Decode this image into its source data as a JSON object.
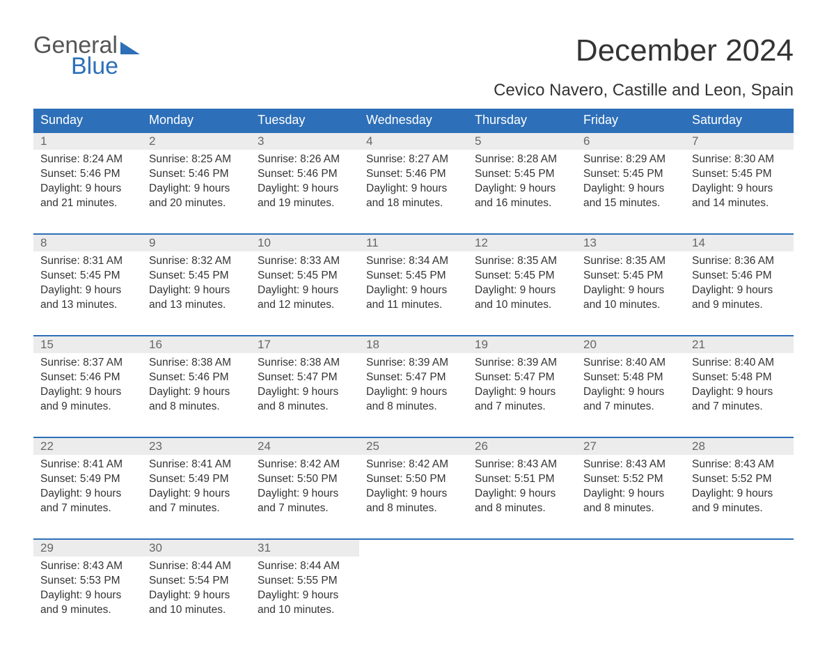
{
  "logo": {
    "line1": "General",
    "line2": "Blue"
  },
  "title": "December 2024",
  "location": "Cevico Navero, Castille and Leon, Spain",
  "day_headers": [
    "Sunday",
    "Monday",
    "Tuesday",
    "Wednesday",
    "Thursday",
    "Friday",
    "Saturday"
  ],
  "colors": {
    "header_bg": "#2d6fb8",
    "header_text": "#ffffff",
    "daynum_bg": "#ececec",
    "daynum_text": "#666666",
    "row_border": "#2d6fb8",
    "body_text": "#333333",
    "logo_grey": "#555555",
    "logo_blue": "#2d6fb8",
    "background": "#ffffff"
  },
  "typography": {
    "title_fontsize": 44,
    "location_fontsize": 24,
    "header_fontsize": 18,
    "daynum_fontsize": 17,
    "cell_fontsize": 15.5,
    "logo_fontsize": 34
  },
  "weeks": [
    [
      {
        "n": "1",
        "sunrise": "Sunrise: 8:24 AM",
        "sunset": "Sunset: 5:46 PM",
        "d1": "Daylight: 9 hours",
        "d2": "and 21 minutes."
      },
      {
        "n": "2",
        "sunrise": "Sunrise: 8:25 AM",
        "sunset": "Sunset: 5:46 PM",
        "d1": "Daylight: 9 hours",
        "d2": "and 20 minutes."
      },
      {
        "n": "3",
        "sunrise": "Sunrise: 8:26 AM",
        "sunset": "Sunset: 5:46 PM",
        "d1": "Daylight: 9 hours",
        "d2": "and 19 minutes."
      },
      {
        "n": "4",
        "sunrise": "Sunrise: 8:27 AM",
        "sunset": "Sunset: 5:46 PM",
        "d1": "Daylight: 9 hours",
        "d2": "and 18 minutes."
      },
      {
        "n": "5",
        "sunrise": "Sunrise: 8:28 AM",
        "sunset": "Sunset: 5:45 PM",
        "d1": "Daylight: 9 hours",
        "d2": "and 16 minutes."
      },
      {
        "n": "6",
        "sunrise": "Sunrise: 8:29 AM",
        "sunset": "Sunset: 5:45 PM",
        "d1": "Daylight: 9 hours",
        "d2": "and 15 minutes."
      },
      {
        "n": "7",
        "sunrise": "Sunrise: 8:30 AM",
        "sunset": "Sunset: 5:45 PM",
        "d1": "Daylight: 9 hours",
        "d2": "and 14 minutes."
      }
    ],
    [
      {
        "n": "8",
        "sunrise": "Sunrise: 8:31 AM",
        "sunset": "Sunset: 5:45 PM",
        "d1": "Daylight: 9 hours",
        "d2": "and 13 minutes."
      },
      {
        "n": "9",
        "sunrise": "Sunrise: 8:32 AM",
        "sunset": "Sunset: 5:45 PM",
        "d1": "Daylight: 9 hours",
        "d2": "and 13 minutes."
      },
      {
        "n": "10",
        "sunrise": "Sunrise: 8:33 AM",
        "sunset": "Sunset: 5:45 PM",
        "d1": "Daylight: 9 hours",
        "d2": "and 12 minutes."
      },
      {
        "n": "11",
        "sunrise": "Sunrise: 8:34 AM",
        "sunset": "Sunset: 5:45 PM",
        "d1": "Daylight: 9 hours",
        "d2": "and 11 minutes."
      },
      {
        "n": "12",
        "sunrise": "Sunrise: 8:35 AM",
        "sunset": "Sunset: 5:45 PM",
        "d1": "Daylight: 9 hours",
        "d2": "and 10 minutes."
      },
      {
        "n": "13",
        "sunrise": "Sunrise: 8:35 AM",
        "sunset": "Sunset: 5:45 PM",
        "d1": "Daylight: 9 hours",
        "d2": "and 10 minutes."
      },
      {
        "n": "14",
        "sunrise": "Sunrise: 8:36 AM",
        "sunset": "Sunset: 5:46 PM",
        "d1": "Daylight: 9 hours",
        "d2": "and 9 minutes."
      }
    ],
    [
      {
        "n": "15",
        "sunrise": "Sunrise: 8:37 AM",
        "sunset": "Sunset: 5:46 PM",
        "d1": "Daylight: 9 hours",
        "d2": "and 9 minutes."
      },
      {
        "n": "16",
        "sunrise": "Sunrise: 8:38 AM",
        "sunset": "Sunset: 5:46 PM",
        "d1": "Daylight: 9 hours",
        "d2": "and 8 minutes."
      },
      {
        "n": "17",
        "sunrise": "Sunrise: 8:38 AM",
        "sunset": "Sunset: 5:47 PM",
        "d1": "Daylight: 9 hours",
        "d2": "and 8 minutes."
      },
      {
        "n": "18",
        "sunrise": "Sunrise: 8:39 AM",
        "sunset": "Sunset: 5:47 PM",
        "d1": "Daylight: 9 hours",
        "d2": "and 8 minutes."
      },
      {
        "n": "19",
        "sunrise": "Sunrise: 8:39 AM",
        "sunset": "Sunset: 5:47 PM",
        "d1": "Daylight: 9 hours",
        "d2": "and 7 minutes."
      },
      {
        "n": "20",
        "sunrise": "Sunrise: 8:40 AM",
        "sunset": "Sunset: 5:48 PM",
        "d1": "Daylight: 9 hours",
        "d2": "and 7 minutes."
      },
      {
        "n": "21",
        "sunrise": "Sunrise: 8:40 AM",
        "sunset": "Sunset: 5:48 PM",
        "d1": "Daylight: 9 hours",
        "d2": "and 7 minutes."
      }
    ],
    [
      {
        "n": "22",
        "sunrise": "Sunrise: 8:41 AM",
        "sunset": "Sunset: 5:49 PM",
        "d1": "Daylight: 9 hours",
        "d2": "and 7 minutes."
      },
      {
        "n": "23",
        "sunrise": "Sunrise: 8:41 AM",
        "sunset": "Sunset: 5:49 PM",
        "d1": "Daylight: 9 hours",
        "d2": "and 7 minutes."
      },
      {
        "n": "24",
        "sunrise": "Sunrise: 8:42 AM",
        "sunset": "Sunset: 5:50 PM",
        "d1": "Daylight: 9 hours",
        "d2": "and 7 minutes."
      },
      {
        "n": "25",
        "sunrise": "Sunrise: 8:42 AM",
        "sunset": "Sunset: 5:50 PM",
        "d1": "Daylight: 9 hours",
        "d2": "and 8 minutes."
      },
      {
        "n": "26",
        "sunrise": "Sunrise: 8:43 AM",
        "sunset": "Sunset: 5:51 PM",
        "d1": "Daylight: 9 hours",
        "d2": "and 8 minutes."
      },
      {
        "n": "27",
        "sunrise": "Sunrise: 8:43 AM",
        "sunset": "Sunset: 5:52 PM",
        "d1": "Daylight: 9 hours",
        "d2": "and 8 minutes."
      },
      {
        "n": "28",
        "sunrise": "Sunrise: 8:43 AM",
        "sunset": "Sunset: 5:52 PM",
        "d1": "Daylight: 9 hours",
        "d2": "and 9 minutes."
      }
    ],
    [
      {
        "n": "29",
        "sunrise": "Sunrise: 8:43 AM",
        "sunset": "Sunset: 5:53 PM",
        "d1": "Daylight: 9 hours",
        "d2": "and 9 minutes."
      },
      {
        "n": "30",
        "sunrise": "Sunrise: 8:44 AM",
        "sunset": "Sunset: 5:54 PM",
        "d1": "Daylight: 9 hours",
        "d2": "and 10 minutes."
      },
      {
        "n": "31",
        "sunrise": "Sunrise: 8:44 AM",
        "sunset": "Sunset: 5:55 PM",
        "d1": "Daylight: 9 hours",
        "d2": "and 10 minutes."
      },
      null,
      null,
      null,
      null
    ]
  ]
}
